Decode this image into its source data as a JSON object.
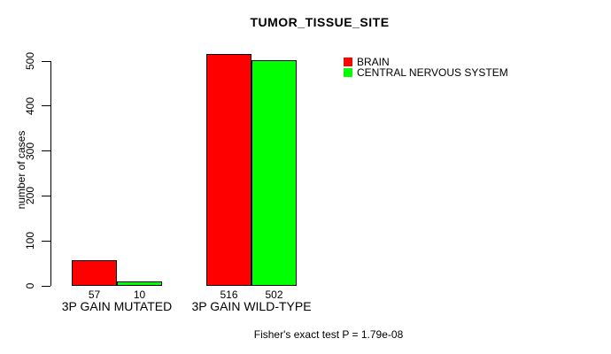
{
  "chart_data": {
    "type": "bar",
    "title": "TUMOR_TISSUE_SITE",
    "xlabel": "",
    "ylabel": "number of cases",
    "categories": [
      "3P GAIN MUTATED",
      "3P GAIN WILD-TYPE"
    ],
    "series": [
      {
        "name": "BRAIN",
        "color": "#ff0000",
        "values": [
          57,
          516
        ]
      },
      {
        "name": "CENTRAL NERVOUS SYSTEM",
        "color": "#00ff00",
        "values": [
          10,
          502
        ]
      }
    ],
    "bar_value_labels": [
      [
        "57",
        "10"
      ],
      [
        "516",
        "502"
      ]
    ],
    "ylim": [
      0,
      500
    ],
    "yticks": [
      "0",
      "100",
      "200",
      "300",
      "400",
      "500"
    ],
    "legend_position": "top-right-outside",
    "grid": false
  },
  "footer": {
    "caption": "Fisher's exact test P = 1.79e-08"
  }
}
